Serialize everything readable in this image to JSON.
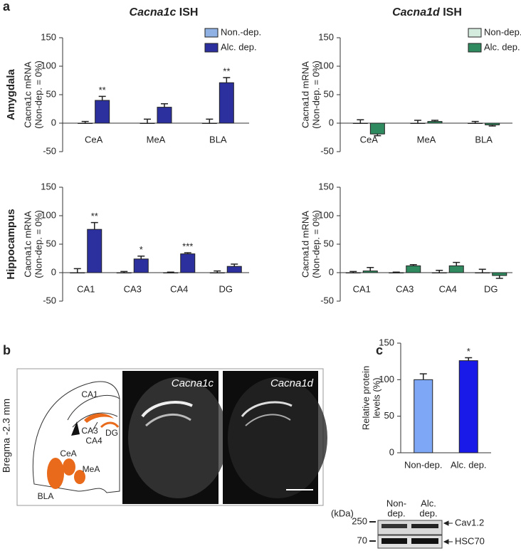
{
  "figure": {
    "panel_labels": [
      "a",
      "b",
      "c"
    ],
    "column_titles": [
      {
        "gene": "Cacna1c",
        "suffix": "ISH"
      },
      {
        "gene": "Cacna1d",
        "suffix": "ISH"
      }
    ],
    "row_titles": [
      "Amygdala",
      "Hippocampus"
    ],
    "atlas": {
      "bregma": "Bregma -2.3 mm",
      "regions": [
        "CA1",
        "CA3",
        "CA4",
        "DG",
        "CeA",
        "MeA",
        "BLA"
      ]
    },
    "images": [
      "Cacna1c",
      "Cacna1d"
    ],
    "blot": {
      "unit": "(kDa)",
      "lanes": [
        [
          "Non-",
          "dep."
        ],
        [
          "Alc.",
          "dep."
        ]
      ],
      "markers": [
        250,
        70
      ],
      "bands": [
        "Cav1.2",
        "HSC70"
      ]
    }
  },
  "chart_data": [
    {
      "type": "bar",
      "ylabel": [
        "Cacna1c mRNA",
        "(Non-dep. = 0%)"
      ],
      "categories": [
        "CeA",
        "MeA",
        "BLA"
      ],
      "series": [
        {
          "name": "Non.-dep.",
          "color": "#8fb1e3",
          "values": [
            0,
            0,
            0
          ],
          "errors": [
            3,
            7,
            7
          ]
        },
        {
          "name": "Alc. dep.",
          "color": "#2c2f9e",
          "values": [
            40,
            28,
            71
          ],
          "errors": [
            7,
            6,
            9
          ],
          "significance": [
            "**",
            null,
            "**"
          ]
        }
      ],
      "legend": "upper right",
      "ylim": [
        -50,
        150
      ],
      "yticks": [
        -50,
        0,
        50,
        100,
        150
      ]
    },
    {
      "type": "bar",
      "ylabel": [
        "Cacna1d mRNA",
        "(Non-dep. = 0%)"
      ],
      "categories": [
        "CeA",
        "MeA",
        "BLA"
      ],
      "series": [
        {
          "name": "Non-dep.",
          "color": "#d4ecdd",
          "values": [
            0,
            0,
            0
          ],
          "errors": [
            6,
            5,
            3
          ]
        },
        {
          "name": "Alc. dep.",
          "color": "#2f8a5f",
          "values": [
            -19,
            3,
            -3
          ],
          "errors": [
            3,
            2,
            2
          ]
        }
      ],
      "legend": "upper right",
      "ylim": [
        -50,
        150
      ],
      "yticks": [
        -50,
        0,
        50,
        100,
        150
      ]
    },
    {
      "type": "bar",
      "ylabel": [
        "Cacna1c mRNA",
        "(Non-dep. = 0%)"
      ],
      "categories": [
        "CA1",
        "CA3",
        "CA4",
        "DG"
      ],
      "series": [
        {
          "color": "#8fb1e3",
          "values": [
            0,
            0,
            0,
            0
          ],
          "errors": [
            7,
            2,
            1,
            3
          ]
        },
        {
          "color": "#2c2f9e",
          "values": [
            76,
            24,
            33,
            11
          ],
          "errors": [
            12,
            5,
            2,
            4
          ],
          "significance": [
            "**",
            "*",
            "***",
            null
          ]
        }
      ],
      "ylim": [
        -50,
        150
      ],
      "yticks": [
        -50,
        0,
        50,
        100,
        150
      ]
    },
    {
      "type": "bar",
      "ylabel": [
        "Cacna1d mRNA",
        "(Non-dep. = 0%)"
      ],
      "categories": [
        "CA1",
        "CA3",
        "CA4",
        "DG"
      ],
      "series": [
        {
          "color": "#d4ecdd",
          "values": [
            0,
            0,
            0,
            0
          ],
          "errors": [
            2,
            1,
            4,
            6
          ]
        },
        {
          "color": "#2f8a5f",
          "values": [
            3,
            12,
            12,
            -5
          ],
          "errors": [
            6,
            2,
            6,
            5
          ]
        }
      ],
      "ylim": [
        -50,
        150
      ],
      "yticks": [
        -50,
        0,
        50,
        100,
        150
      ]
    },
    {
      "type": "bar",
      "ylabel": [
        "Relative protein",
        "levels (%)"
      ],
      "categories": [
        "Non-dep.",
        "Alc. dep."
      ],
      "values": [
        100,
        126
      ],
      "errors": [
        8,
        4
      ],
      "colors": [
        "#7ea8f5",
        "#1a1ae8"
      ],
      "significance": [
        null,
        "*"
      ],
      "ylim": [
        0,
        150
      ],
      "yticks": [
        0,
        50,
        100,
        150
      ]
    }
  ]
}
